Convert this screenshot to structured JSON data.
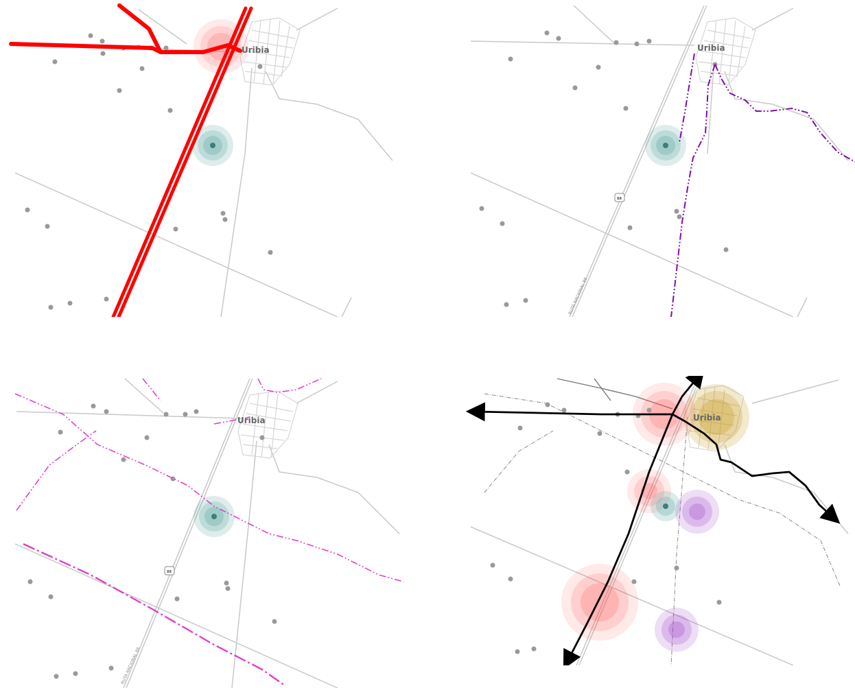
{
  "town_label": "Uribia",
  "road_shield": "88",
  "road_name": "RUTA NACIONAL 88",
  "colors": {
    "red_route": "#ff0000",
    "purple_route": "#7a10a8",
    "magenta_route": "#e040c8",
    "black_route": "#000000",
    "teal_hotspot": "#5aa6a0",
    "red_hotspot": "#ff4a4a",
    "gold_hotspot": "#c79a1e",
    "purple_hotspot": "#9a40c8",
    "road_gray": "#c8c8c8"
  },
  "panels": [
    {
      "id": "top-left",
      "highlight": "red routes"
    },
    {
      "id": "top-right",
      "highlight": "purple route"
    },
    {
      "id": "bottom-left",
      "highlight": "magenta routes"
    },
    {
      "id": "bottom-right",
      "highlight": "combined routes with arrows"
    }
  ]
}
